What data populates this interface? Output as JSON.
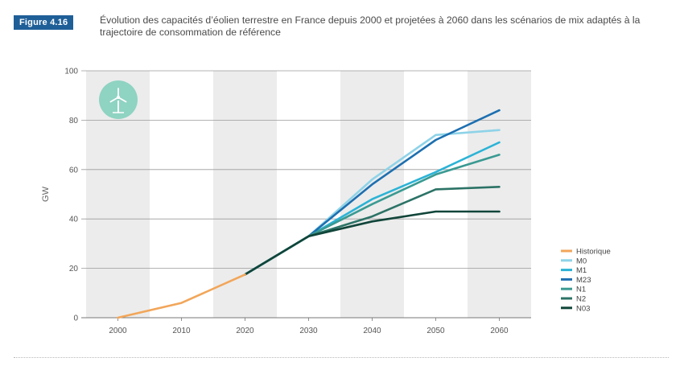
{
  "figure": {
    "label": "Figure 4.16",
    "title": "Évolution des capacités d’éolien terrestre en France depuis 2000 et projetées à 2060 dans les scénarios de mix adaptés à la trajectoire de consommation de référence"
  },
  "icon": {
    "name": "wind-turbine-icon",
    "color": "#8fd3c2"
  },
  "chart_data": {
    "type": "line",
    "xlabel": "",
    "ylabel": "GW",
    "xlim": [
      1995,
      2065
    ],
    "ylim": [
      0,
      100
    ],
    "x_ticks": [
      "2000",
      "2010",
      "2020",
      "2030",
      "2040",
      "2050",
      "2060"
    ],
    "y_ticks": [
      "0",
      "20",
      "40",
      "60",
      "80",
      "100"
    ],
    "grid": true,
    "legend_position": "right",
    "series": [
      {
        "name": "Historique",
        "color": "#f2a65a",
        "x": [
          2000,
          2010,
          2020
        ],
        "y": [
          0,
          6,
          17.5
        ]
      },
      {
        "name": "M0",
        "color": "#8ed3e8",
        "x": [
          2020,
          2030,
          2040,
          2050,
          2060
        ],
        "y": [
          17.5,
          33,
          56,
          74,
          76
        ]
      },
      {
        "name": "M1",
        "color": "#2bb3d6",
        "x": [
          2020,
          2030,
          2040,
          2050,
          2060
        ],
        "y": [
          17.5,
          33,
          48,
          59,
          71
        ]
      },
      {
        "name": "M23",
        "color": "#1d6fb0",
        "x": [
          2020,
          2030,
          2040,
          2050,
          2060
        ],
        "y": [
          17.5,
          33,
          54,
          72,
          84
        ]
      },
      {
        "name": "N1",
        "color": "#3a9a92",
        "x": [
          2020,
          2030,
          2040,
          2050,
          2060
        ],
        "y": [
          17.5,
          33,
          46,
          58,
          66
        ]
      },
      {
        "name": "N2",
        "color": "#2c7366",
        "x": [
          2020,
          2030,
          2040,
          2050,
          2060
        ],
        "y": [
          17.5,
          33,
          41,
          52,
          53
        ]
      },
      {
        "name": "N03",
        "color": "#11453a",
        "x": [
          2020,
          2030,
          2040,
          2050,
          2060
        ],
        "y": [
          17.5,
          33,
          39,
          43,
          43
        ]
      }
    ]
  }
}
